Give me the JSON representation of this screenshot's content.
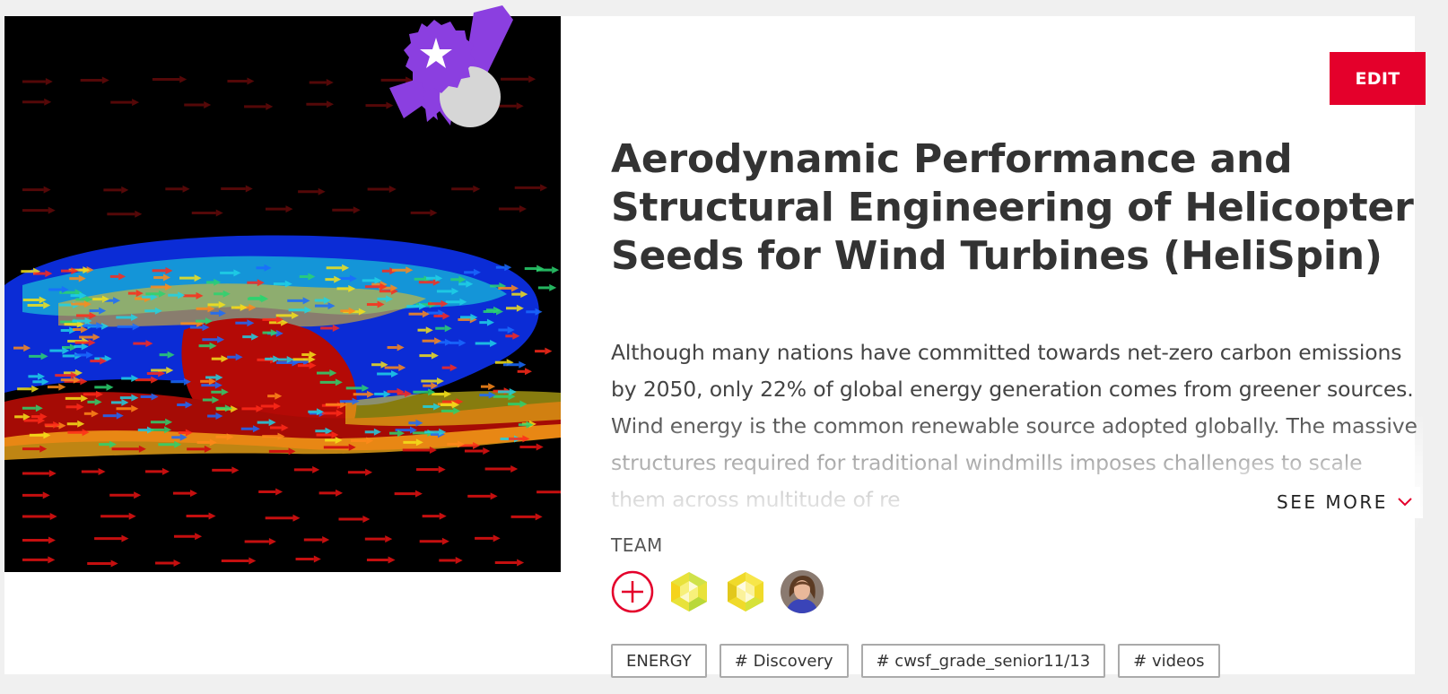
{
  "project": {
    "title": "Aerodynamic Performance and Structural Engineering of Helicopter Seeds for Wind Turbines (HeliSpin)",
    "description": "Although many nations have committed towards net-zero carbon emissions by 2050, only 22% of global energy generation comes from greener sources. Wind energy is the common renewable source adopted globally. The massive structures required for traditional windmills imposes challenges to scale them across multitude of re",
    "see_more_label": "SEE MORE",
    "edit_label": "EDIT",
    "image_icon": "flow-vector-visualization",
    "award_icon": "award-ribbon-icon"
  },
  "team": {
    "label": "TEAM",
    "add_icon": "plus-circle-icon",
    "members": [
      {
        "avatar": "yellow-geometric-avatar"
      },
      {
        "avatar": "yellow-geometric-avatar"
      },
      {
        "avatar": "photo-avatar"
      }
    ]
  },
  "tags": [
    "ENERGY",
    "# Discovery",
    "# cwsf_grade_senior11/13",
    "# videos"
  ],
  "colors": {
    "accent": "#e4002b",
    "award_purple": "#8b3fe0",
    "text": "#333333",
    "page_bg": "#f0f0f0"
  }
}
